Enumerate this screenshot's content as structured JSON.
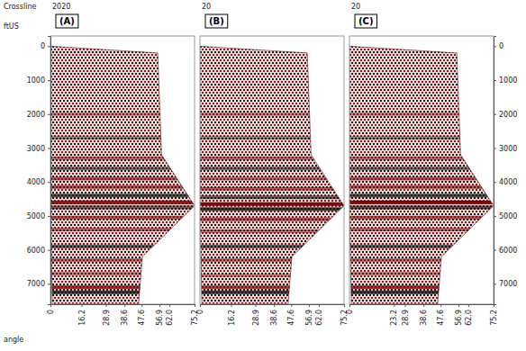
{
  "chart_data": {
    "type": "seismic_gather",
    "header": "Crossline",
    "y_label": "ftUS",
    "x_label": "angle",
    "ylim": [
      -300,
      7600
    ],
    "yticks": [
      0,
      1000,
      2000,
      3000,
      4000,
      5000,
      6000,
      7000
    ],
    "xlim": [
      0,
      75.2
    ],
    "panels": [
      {
        "title": "(A)",
        "crossline": "2020",
        "xticks": [
          0,
          16.2,
          28.9,
          38.6,
          47.6,
          56.9,
          {
            "value": 62,
            "label": "62.0"
          },
          75.2
        ],
        "mute": {
          "angle": [
            0,
            56,
            58,
            75.2,
            48,
            46,
            1,
            0
          ],
          "depth": [
            0,
            200,
            3200,
            4700,
            6200,
            7600,
            7600,
            5000
          ]
        },
        "events": {
          "depth": [
            2000,
            2700,
            3300,
            3600,
            3900,
            4150,
            4400,
            4600,
            4750,
            5050,
            5400,
            5900,
            6300,
            6700,
            7100,
            7250
          ],
          "amplitude": [
            0.4,
            -0.4,
            0.5,
            -0.5,
            0.6,
            0.6,
            -0.7,
            0.9,
            -0.6,
            0.6,
            0.5,
            -0.6,
            0.5,
            0.4,
            0.8,
            -0.8
          ]
        }
      },
      {
        "title": "(B)",
        "crossline": "20",
        "xticks": [
          0,
          16.2,
          28.9,
          38.6,
          47.6,
          56.9,
          {
            "value": 62,
            "label": "62.0"
          },
          75.2
        ],
        "mute": {
          "angle": [
            0,
            56,
            58,
            75.2,
            48,
            46,
            1,
            0
          ],
          "depth": [
            0,
            200,
            3200,
            4700,
            6200,
            7600,
            7600,
            5000
          ]
        },
        "events": {
          "depth": [
            2000,
            2700,
            3300,
            3600,
            3900,
            4200,
            4450,
            4650,
            4800,
            5100,
            5450,
            5900,
            6300,
            6750,
            7100,
            7250
          ],
          "amplitude": [
            0.4,
            -0.4,
            0.5,
            -0.5,
            0.5,
            0.6,
            -0.6,
            1.0,
            -0.8,
            0.6,
            0.5,
            -0.6,
            0.5,
            0.4,
            0.7,
            -0.8
          ]
        }
      },
      {
        "title": "(C)",
        "crossline": "20",
        "xticks": [
          0,
          23.2,
          28.9,
          38.6,
          47.6,
          56.9,
          {
            "value": 62,
            "label": "62.0"
          },
          75.2
        ],
        "mute": {
          "angle": [
            0,
            56,
            58,
            75.2,
            48,
            46,
            1,
            0
          ],
          "depth": [
            0,
            200,
            3200,
            4700,
            6200,
            7600,
            7600,
            5000
          ]
        },
        "events": {
          "depth": [
            2000,
            2700,
            3300,
            3600,
            3900,
            4150,
            4400,
            4600,
            4750,
            5050,
            5400,
            5900,
            6300,
            6700,
            7100,
            7250
          ],
          "amplitude": [
            0.4,
            -0.4,
            0.5,
            -0.5,
            0.6,
            0.6,
            -0.7,
            1.0,
            -0.7,
            0.6,
            0.5,
            -0.6,
            0.5,
            0.4,
            0.8,
            -0.8
          ]
        }
      }
    ]
  }
}
